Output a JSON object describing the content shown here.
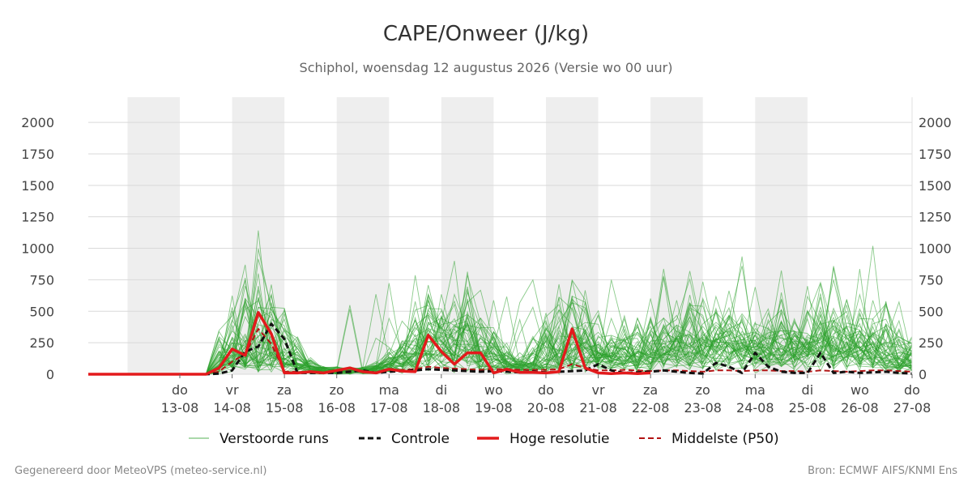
{
  "chart_data": {
    "type": "line",
    "title": "CAPE/Onweer (J/kg)",
    "subtitle": "Schiphol, woensdag 12 augustus 2026 (Versie wo 00 uur)",
    "y_ticks": [
      0,
      250,
      500,
      750,
      1000,
      1250,
      1500,
      1750,
      2000
    ],
    "ylim": [
      0,
      2200
    ],
    "x_range_days": [
      -0.75,
      15
    ],
    "x_ticks": [
      {
        "day": "do",
        "date": "13-08"
      },
      {
        "day": "vr",
        "date": "14-08"
      },
      {
        "day": "za",
        "date": "15-08"
      },
      {
        "day": "zo",
        "date": "16-08"
      },
      {
        "day": "ma",
        "date": "17-08"
      },
      {
        "day": "di",
        "date": "18-08"
      },
      {
        "day": "wo",
        "date": "19-08"
      },
      {
        "day": "do",
        "date": "20-08"
      },
      {
        "day": "vr",
        "date": "21-08"
      },
      {
        "day": "za",
        "date": "22-08"
      },
      {
        "day": "zo",
        "date": "23-08"
      },
      {
        "day": "ma",
        "date": "24-08"
      },
      {
        "day": "di",
        "date": "25-08"
      },
      {
        "day": "wo",
        "date": "26-08"
      },
      {
        "day": "do",
        "date": "27-08"
      }
    ],
    "grid": true,
    "legend_position": "bottom",
    "shaded_day_index": [
      0,
      2,
      4,
      6,
      8,
      10,
      12
    ],
    "series": [
      {
        "name": "Verstoorde runs",
        "style": "thin-green",
        "color": "#2ca02c",
        "members": 50
      },
      {
        "name": "Controle",
        "style": "dashed",
        "color": "#111111",
        "x": [
          -0.75,
          -0.5,
          -0.25,
          0,
          0.25,
          0.5,
          0.75,
          1,
          1.25,
          1.5,
          1.75,
          2,
          2.25,
          2.5,
          2.75,
          3,
          3.25,
          3.5,
          3.75,
          4,
          4.25,
          4.5,
          4.75,
          5,
          5.25,
          5.5,
          5.75,
          6,
          6.25,
          6.5,
          6.75,
          7,
          7.25,
          7.5,
          7.75,
          8,
          8.25,
          8.5,
          8.75,
          9,
          9.25,
          9.5,
          9.75,
          10,
          10.25,
          10.5,
          10.75,
          11,
          11.25,
          11.5,
          11.75,
          12,
          12.25,
          12.5,
          12.75,
          13,
          13.25,
          13.5,
          13.75,
          14,
          14.25,
          14.5,
          14.75,
          15
        ],
        "y": [
          0,
          0,
          0,
          0,
          0,
          0,
          0,
          0,
          0,
          0,
          5,
          30,
          180,
          220,
          400,
          280,
          10,
          10,
          10,
          10,
          20,
          30,
          10,
          20,
          25,
          30,
          40,
          35,
          30,
          25,
          20,
          25,
          20,
          15,
          20,
          15,
          20,
          25,
          30,
          80,
          30,
          10,
          15,
          20,
          30,
          20,
          10,
          5,
          90,
          60,
          10,
          170,
          60,
          20,
          10,
          10,
          170,
          10,
          20,
          10,
          15,
          20,
          10,
          5
        ]
      },
      {
        "name": "Hoge resolutie",
        "style": "thick",
        "color": "#e31a1c",
        "x": [
          -0.75,
          -0.5,
          -0.25,
          0,
          0.25,
          0.5,
          0.75,
          1,
          1.25,
          1.5,
          1.75,
          2,
          2.25,
          2.5,
          2.75,
          3,
          3.25,
          3.5,
          3.75,
          4,
          4.25,
          4.5,
          4.75,
          5,
          5.25,
          5.5,
          5.75,
          6,
          6.25,
          6.5,
          6.75,
          7,
          7.25,
          7.5,
          7.75,
          8,
          8.25,
          8.5,
          8.75,
          9,
          9.25,
          9.5,
          9.75,
          10
        ],
        "y": [
          0,
          0,
          0,
          0,
          0,
          0,
          0,
          0,
          0,
          0,
          50,
          200,
          150,
          490,
          320,
          10,
          10,
          20,
          10,
          30,
          50,
          20,
          10,
          40,
          25,
          20,
          310,
          180,
          80,
          170,
          170,
          10,
          40,
          15,
          15,
          10,
          20,
          360,
          50,
          10,
          5,
          10,
          5,
          10
        ]
      },
      {
        "name": "Middelste (P50)",
        "style": "dashed",
        "color": "#b21414",
        "x": [
          -0.75,
          -0.5,
          -0.25,
          0,
          0.25,
          0.5,
          0.75,
          1,
          1.25,
          1.5,
          1.75,
          2,
          2.25,
          2.5,
          2.75,
          3,
          3.25,
          3.5,
          3.75,
          4,
          4.25,
          4.5,
          4.75,
          5,
          5.25,
          5.5,
          5.75,
          6,
          6.25,
          6.5,
          6.75,
          7,
          7.25,
          7.5,
          7.75,
          8,
          8.25,
          8.5,
          8.75,
          9,
          9.25,
          9.5,
          9.75,
          10,
          10.25,
          10.5,
          10.75,
          11,
          11.25,
          11.5,
          11.75,
          12,
          12.25,
          12.5,
          12.75,
          13,
          13.25,
          13.5,
          13.75,
          14,
          14.25,
          14.5,
          14.75,
          15
        ],
        "y": [
          0,
          0,
          0,
          0,
          0,
          0,
          0,
          0,
          0,
          0,
          20,
          100,
          160,
          360,
          240,
          20,
          20,
          15,
          15,
          20,
          25,
          20,
          15,
          30,
          35,
          40,
          60,
          50,
          45,
          40,
          35,
          40,
          40,
          35,
          35,
          35,
          40,
          80,
          50,
          30,
          30,
          35,
          30,
          25,
          30,
          30,
          25,
          20,
          30,
          30,
          25,
          30,
          30,
          25,
          25,
          20,
          30,
          25,
          20,
          25,
          30,
          30,
          25,
          20
        ]
      }
    ]
  },
  "footer": {
    "left": "Gegenereerd door MeteoVPS (meteo-service.nl)",
    "right": "Bron: ECMWF AIFS/KNMI Ens"
  }
}
